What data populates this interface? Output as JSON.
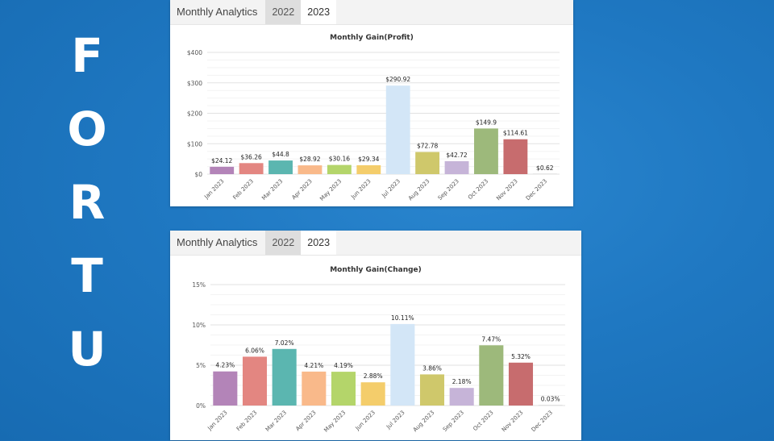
{
  "side_text": [
    "F",
    "O",
    "R",
    "T",
    "U"
  ],
  "panels": [
    {
      "title": "Monthly Analytics",
      "tabs": [
        "2022",
        "2023"
      ],
      "active_tab": "2023"
    },
    {
      "title": "Monthly Analytics",
      "tabs": [
        "2022",
        "2023"
      ],
      "active_tab": "2023"
    }
  ],
  "chart_data": [
    {
      "type": "bar",
      "title": "Monthly Gain(Profit)",
      "categories": [
        "Jan 2023",
        "Feb 2023",
        "Mar 2023",
        "Apr 2023",
        "May 2023",
        "Jun 2023",
        "Jul 2023",
        "Aug 2023",
        "Sep 2023",
        "Oct 2023",
        "Nov 2023",
        "Dec 2023"
      ],
      "values": [
        24.12,
        36.26,
        44.8,
        28.92,
        30.16,
        29.34,
        290.92,
        72.78,
        42.72,
        149.9,
        114.61,
        0.62
      ],
      "value_labels": [
        "$24.12",
        "$36.26",
        "$44.8",
        "$28.92",
        "$30.16",
        "$29.34",
        "$290.92",
        "$72.78",
        "$42.72",
        "$149.9",
        "$114.61",
        "$0.62"
      ],
      "ylim": [
        0,
        400
      ],
      "yticks": [
        0,
        100,
        200,
        300,
        400
      ],
      "ytick_labels": [
        "$0",
        "$100",
        "$200",
        "$300",
        "$400"
      ],
      "grid": true,
      "colors": [
        "#b384b8",
        "#e38681",
        "#5bb6b0",
        "#f9b98a",
        "#b4d56a",
        "#f4cd6b",
        "#d3e6f7",
        "#cfc86b",
        "#c6b4d8",
        "#9db97b",
        "#c76c6e",
        "#b5b5b5"
      ]
    },
    {
      "type": "bar",
      "title": "Monthly Gain(Change)",
      "categories": [
        "Jan 2023",
        "Feb 2023",
        "Mar 2023",
        "Apr 2023",
        "May 2023",
        "Jun 2023",
        "Jul 2023",
        "Aug 2023",
        "Sep 2023",
        "Oct 2023",
        "Nov 2023",
        "Dec 2023"
      ],
      "values": [
        4.23,
        6.06,
        7.02,
        4.21,
        4.19,
        2.88,
        10.11,
        3.86,
        2.18,
        7.47,
        5.32,
        0.03
      ],
      "value_labels": [
        "4.23%",
        "6.06%",
        "7.02%",
        "4.21%",
        "4.19%",
        "2.88%",
        "10.11%",
        "3.86%",
        "2.18%",
        "7.47%",
        "5.32%",
        "0.03%"
      ],
      "ylim": [
        0,
        15
      ],
      "yticks": [
        0,
        5,
        10,
        15
      ],
      "ytick_labels": [
        "0%",
        "5%",
        "10%",
        "15%"
      ],
      "grid": true,
      "colors": [
        "#b384b8",
        "#e38681",
        "#5bb6b0",
        "#f9b98a",
        "#b4d56a",
        "#f4cd6b",
        "#d3e6f7",
        "#cfc86b",
        "#c6b4d8",
        "#9db97b",
        "#c76c6e",
        "#b5b5b5"
      ]
    }
  ]
}
